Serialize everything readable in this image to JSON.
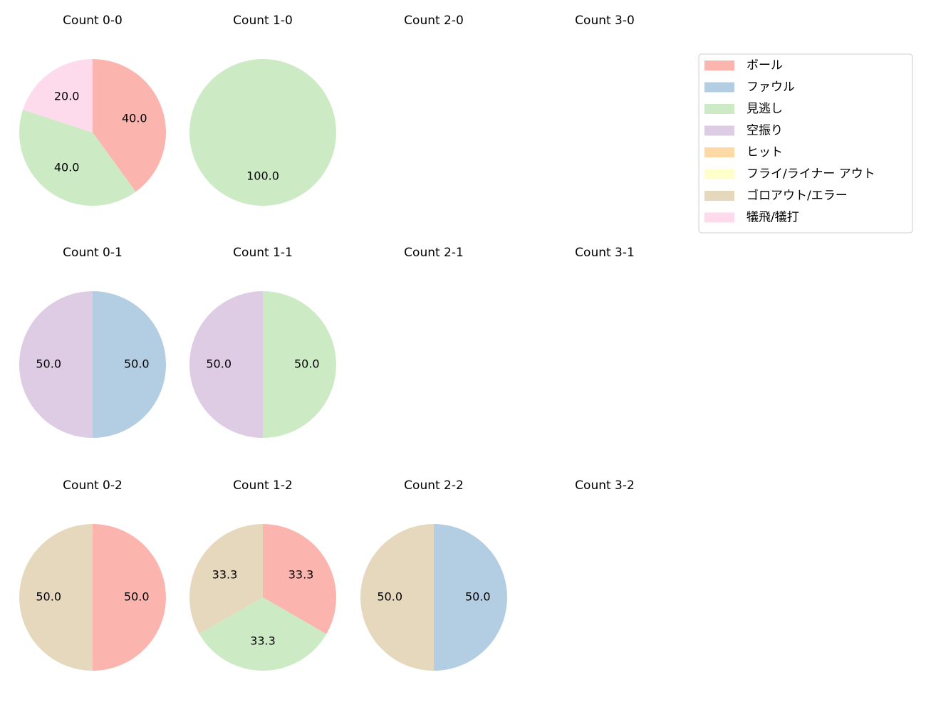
{
  "chart_data": [
    {
      "type": "pie",
      "title": "Count 0-0",
      "categories": [
        "ボール",
        "見逃し",
        "犠飛/犠打"
      ],
      "values": [
        40,
        40,
        20
      ],
      "value_labels": [
        "40.0",
        "40.0",
        "20.0"
      ],
      "colors": [
        "#fbb4ae",
        "#ccebc5",
        "#fddaec"
      ]
    },
    {
      "type": "pie",
      "title": "Count 1-0",
      "categories": [
        "見逃し"
      ],
      "values": [
        100
      ],
      "value_labels": [
        "100.0"
      ],
      "colors": [
        "#ccebc5"
      ]
    },
    {
      "type": "pie",
      "title": "Count 2-0"
    },
    {
      "type": "pie",
      "title": "Count 3-0"
    },
    {
      "type": "pie",
      "title": "Count 0-1",
      "categories": [
        "ファウル",
        "空振り"
      ],
      "values": [
        50,
        50
      ],
      "value_labels": [
        "50.0",
        "50.0"
      ],
      "colors": [
        "#b3cde3",
        "#decbe4"
      ]
    },
    {
      "type": "pie",
      "title": "Count 1-1",
      "categories": [
        "見逃し",
        "空振り"
      ],
      "values": [
        50,
        50
      ],
      "value_labels": [
        "50.0",
        "50.0"
      ],
      "colors": [
        "#ccebc5",
        "#decbe4"
      ]
    },
    {
      "type": "pie",
      "title": "Count 2-1"
    },
    {
      "type": "pie",
      "title": "Count 3-1"
    },
    {
      "type": "pie",
      "title": "Count 0-2",
      "categories": [
        "ボール",
        "ゴロアウト/エラー"
      ],
      "values": [
        50,
        50
      ],
      "value_labels": [
        "50.0",
        "50.0"
      ],
      "colors": [
        "#fbb4ae",
        "#e5d8bd"
      ]
    },
    {
      "type": "pie",
      "title": "Count 1-2",
      "categories": [
        "ボール",
        "見逃し",
        "ゴロアウト/エラー"
      ],
      "values": [
        33.3,
        33.3,
        33.3
      ],
      "colors": [
        "#fbb4ae",
        "#ccebc5",
        "#e5d8bd"
      ]
    },
    {
      "type": "pie",
      "title": "Count 2-2",
      "categories": [
        "ファウル",
        "ゴロアウト/エラー"
      ],
      "values": [
        50,
        50
      ],
      "value_labels": [
        "50.0",
        "50.0"
      ],
      "colors": [
        "#b3cde3",
        "#e5d8bd"
      ]
    },
    {
      "type": "pie",
      "title": "Count 3-2"
    }
  ],
  "legend": {
    "position": "upper right",
    "entries": [
      {
        "name": "ボール",
        "color": "#fbb4ae"
      },
      {
        "name": "ファウル",
        "color": "#b3cde3"
      },
      {
        "name": "見逃し",
        "color": "#ccebc5"
      },
      {
        "name": "空振り",
        "color": "#decbe4"
      },
      {
        "name": "ヒット",
        "color": "#fed9a6"
      },
      {
        "name": "フライ/ライナー アウト",
        "color": "#ffffcc"
      },
      {
        "name": "ゴロアウト/エラー",
        "color": "#e5d8bd"
      },
      {
        "name": "犠飛/犠打",
        "color": "#fddaec"
      }
    ]
  }
}
